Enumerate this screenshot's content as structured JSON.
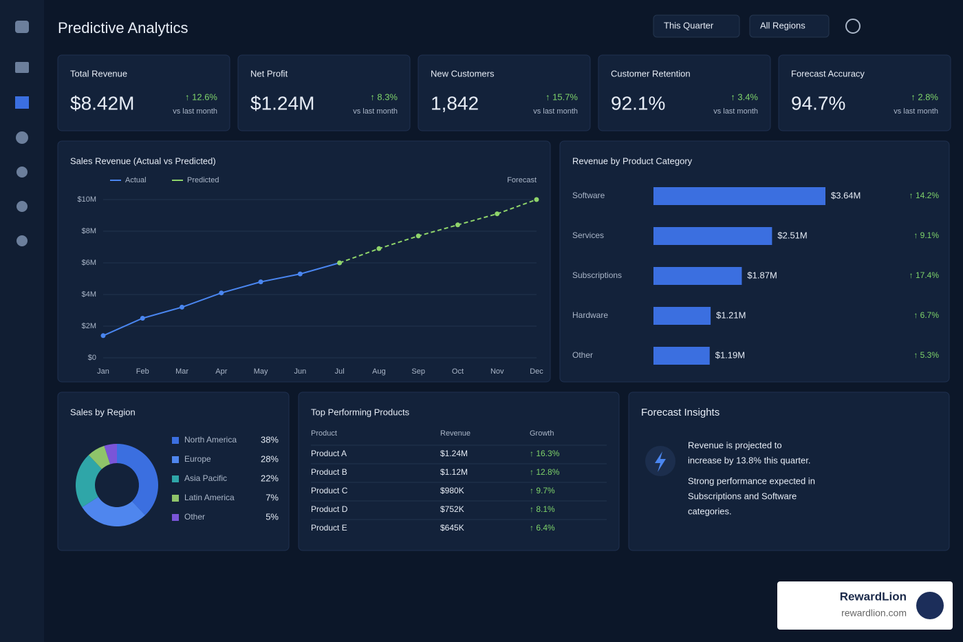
{
  "header": {
    "title": "Predictive Analytics",
    "filters": [
      "This Quarter",
      "All Regions"
    ]
  },
  "kpis": [
    {
      "label": "Total Revenue",
      "value": "$8.42M",
      "change": "↑ 12.6%",
      "note": "vs last month"
    },
    {
      "label": "Net Profit",
      "value": "$1.24M",
      "change": "↑ 8.3%",
      "note": "vs last month"
    },
    {
      "label": "New Customers",
      "value": "1,842",
      "change": "↑ 15.7%",
      "note": "vs last month"
    },
    {
      "label": "Customer Retention",
      "value": "92.1%",
      "change": "↑ 3.4%",
      "note": "vs last month"
    },
    {
      "label": "Forecast Accuracy",
      "value": "94.7%",
      "change": "↑ 2.8%",
      "note": "vs last month"
    }
  ],
  "sales_chart": {
    "type": "line",
    "title": "Sales Revenue (Actual vs Predicted)",
    "annotation": "Forecast",
    "categories": [
      "Jan",
      "Feb",
      "Mar",
      "Apr",
      "May",
      "Jun",
      "Jul",
      "Aug",
      "Sep",
      "Oct",
      "Nov",
      "Dec"
    ],
    "series": [
      {
        "name": "Actual",
        "color": "#4a86f0",
        "values": [
          1.4,
          2.5,
          3.2,
          4.1,
          4.8,
          5.3,
          6.0,
          null,
          null,
          null,
          null,
          null
        ]
      },
      {
        "name": "Predicted",
        "color": "#8fd46a",
        "values": [
          null,
          null,
          null,
          null,
          null,
          null,
          6.0,
          6.9,
          7.7,
          8.4,
          9.1,
          10.0
        ]
      }
    ],
    "ylim": [
      0,
      10
    ],
    "yticks": [
      {
        "value": 0,
        "label": "$0"
      },
      {
        "value": 2,
        "label": "$2M"
      },
      {
        "value": 4,
        "label": "$4M"
      },
      {
        "value": 6,
        "label": "$6M"
      },
      {
        "value": 8,
        "label": "$8M"
      },
      {
        "value": 10,
        "label": "$10M"
      }
    ],
    "grid": true
  },
  "category_chart": {
    "type": "bar",
    "title": "Revenue by Product Category",
    "color": "#3b6fe0",
    "categories": [
      "Software",
      "Services",
      "Subscriptions",
      "Hardware",
      "Other"
    ],
    "values": [
      3.64,
      2.51,
      1.87,
      1.21,
      1.19
    ],
    "value_labels": [
      "$3.64M",
      "$2.51M",
      "$1.87M",
      "$1.21M",
      "$1.19M"
    ],
    "growth": [
      "↑ 14.2%",
      "↑ 9.1%",
      "↑ 17.4%",
      "↑ 6.7%",
      "↑ 5.3%"
    ]
  },
  "region_chart": {
    "type": "pie",
    "title": "Sales by Region",
    "categories": [
      "North America",
      "Europe",
      "Asia Pacific",
      "Latin America",
      "Other"
    ],
    "values": [
      38,
      28,
      22,
      7,
      5
    ],
    "value_labels": [
      "38%",
      "28%",
      "22%",
      "7%",
      "5%"
    ],
    "colors": [
      "#3b6fe0",
      "#4f86ee",
      "#2fa6a8",
      "#8fc46a",
      "#7a55d8"
    ]
  },
  "products": {
    "title": "Top Performing Products",
    "columns": [
      "Product",
      "Revenue",
      "Growth"
    ],
    "rows": [
      [
        "Product A",
        "$1.24M",
        "↑ 16.3%"
      ],
      [
        "Product B",
        "$1.12M",
        "↑ 12.8%"
      ],
      [
        "Product C",
        "$980K",
        "↑ 9.7%"
      ],
      [
        "Product D",
        "$752K",
        "↑ 8.1%"
      ],
      [
        "Product E",
        "$645K",
        "↑ 6.4%"
      ]
    ]
  },
  "insights": {
    "title": "Forecast Insights",
    "lines": [
      "Revenue is projected to",
      "increase by 13.8% this quarter.",
      "Strong performance expected in",
      "Subscriptions and Software",
      "categories."
    ]
  },
  "brand": {
    "name": "RewardLion",
    "url": "rewardlion.com"
  }
}
